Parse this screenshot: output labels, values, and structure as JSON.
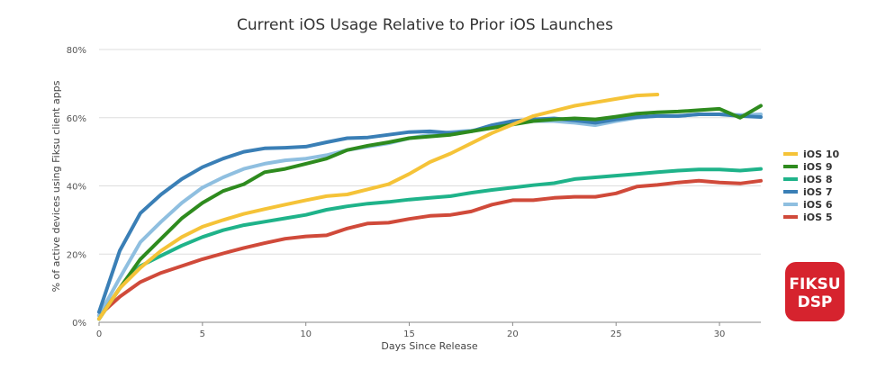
{
  "chart_data": {
    "type": "line",
    "title": "Current iOS Usage Relative to Prior iOS Launches",
    "xlabel": "Days Since Release",
    "ylabel": "% of active devices using Fiksu client apps",
    "xlim": [
      0,
      32
    ],
    "ylim": [
      0,
      80
    ],
    "xticks": [
      0,
      5,
      10,
      15,
      20,
      25,
      30
    ],
    "yticks": [
      0,
      20,
      40,
      60,
      80
    ],
    "ytick_labels": [
      "0%",
      "20%",
      "40%",
      "60%",
      "80%"
    ],
    "grid": "horizontal",
    "legend_position": "right",
    "series": [
      {
        "name": "iOS 10",
        "color": "#f5c338",
        "x": [
          0,
          1,
          2,
          3,
          4,
          5,
          6,
          7,
          8,
          9,
          10,
          11,
          12,
          13,
          14,
          15,
          16,
          17,
          18,
          19,
          20,
          21,
          22,
          23,
          24,
          25,
          26,
          27
        ],
        "values": [
          1,
          10,
          16,
          21,
          25,
          28,
          30,
          31.8,
          33.2,
          34.5,
          35.8,
          37,
          37.5,
          39,
          40.5,
          43.5,
          47,
          49.5,
          52.5,
          55.5,
          58,
          60.5,
          62,
          63.5,
          64.5,
          65.5,
          66.5,
          66.8
        ]
      },
      {
        "name": "iOS 9",
        "color": "#2e8b1e",
        "x": [
          0,
          1,
          2,
          3,
          4,
          5,
          6,
          7,
          8,
          9,
          10,
          11,
          12,
          13,
          14,
          15,
          16,
          17,
          18,
          19,
          20,
          21,
          22,
          23,
          24,
          25,
          26,
          27,
          28,
          29,
          30,
          31,
          32
        ],
        "values": [
          1,
          10,
          18.5,
          24.5,
          30.5,
          35,
          38.5,
          40.5,
          44,
          45,
          46.5,
          48,
          50.5,
          51.8,
          52.8,
          54,
          54.5,
          55,
          56,
          57,
          58,
          59,
          59.5,
          59.8,
          59.5,
          60.3,
          61.2,
          61.6,
          61.8,
          62.2,
          62.6,
          60,
          63.5
        ]
      },
      {
        "name": "iOS 8",
        "color": "#1fb38a",
        "x": [
          0,
          1,
          2,
          3,
          4,
          5,
          6,
          7,
          8,
          9,
          10,
          11,
          12,
          13,
          14,
          15,
          16,
          17,
          18,
          19,
          20,
          21,
          22,
          23,
          24,
          25,
          26,
          27,
          28,
          29,
          30,
          31,
          32
        ],
        "values": [
          1,
          10,
          16.5,
          19.5,
          22.5,
          25,
          27,
          28.5,
          29.5,
          30.5,
          31.5,
          33,
          34,
          34.8,
          35.3,
          36,
          36.5,
          37,
          38,
          38.8,
          39.5,
          40.2,
          40.8,
          42,
          42.5,
          43,
          43.5,
          44,
          44.5,
          44.8,
          44.8,
          44.5,
          45
        ]
      },
      {
        "name": "iOS 7",
        "color": "#3a7fb6",
        "x": [
          0,
          1,
          2,
          3,
          4,
          5,
          6,
          7,
          8,
          9,
          10,
          11,
          12,
          13,
          14,
          15,
          16,
          17,
          18,
          19,
          20,
          21,
          22,
          23,
          24,
          25,
          26,
          27,
          28,
          29,
          30,
          31,
          32
        ],
        "values": [
          3,
          21,
          32,
          37.5,
          42,
          45.5,
          48,
          50,
          51,
          51.2,
          51.5,
          52.8,
          54,
          54.2,
          55,
          55.8,
          56,
          55.5,
          56,
          57.8,
          59,
          59.5,
          59.8,
          59.2,
          58.5,
          59.5,
          60.2,
          60.5,
          60.5,
          61,
          61,
          60.5,
          60.2
        ]
      },
      {
        "name": "iOS 6",
        "color": "#8fbfe0",
        "x": [
          0,
          1,
          2,
          3,
          4,
          5,
          6,
          7,
          8,
          9,
          10,
          11,
          12,
          13,
          14,
          15,
          16,
          17,
          18,
          19,
          20,
          21,
          22,
          23,
          24,
          25,
          26,
          27,
          28,
          29,
          30,
          31,
          32
        ],
        "values": [
          2,
          13,
          23.5,
          29.5,
          35,
          39.5,
          42.5,
          45,
          46.5,
          47.5,
          48,
          49,
          50.5,
          51.5,
          52.5,
          54,
          55,
          55.8,
          56.2,
          57,
          58.3,
          59,
          59,
          58.5,
          57.8,
          59,
          60,
          60.5,
          60.5,
          61,
          61,
          60.8,
          61
        ]
      },
      {
        "name": "iOS 5",
        "color": "#d04a3a",
        "x": [
          0,
          1,
          2,
          3,
          4,
          5,
          6,
          7,
          8,
          9,
          10,
          11,
          12,
          13,
          14,
          15,
          16,
          17,
          18,
          19,
          20,
          21,
          22,
          23,
          24,
          25,
          26,
          27,
          28,
          29,
          30,
          31,
          32
        ],
        "values": [
          2,
          7.5,
          11.8,
          14.5,
          16.5,
          18.5,
          20.2,
          21.8,
          23.2,
          24.5,
          25.2,
          25.5,
          27.5,
          29,
          29.2,
          30.3,
          31.2,
          31.5,
          32.5,
          34.5,
          35.8,
          35.8,
          36.5,
          36.8,
          36.8,
          37.8,
          39.8,
          40.3,
          41,
          41.5,
          41,
          40.7,
          41.5
        ]
      }
    ]
  },
  "logo": {
    "line1": "FIKSU",
    "line2": "DSP"
  },
  "colors": {
    "grid": "#dddddd",
    "axis": "#888888",
    "logo_bg": "#d6232e"
  }
}
